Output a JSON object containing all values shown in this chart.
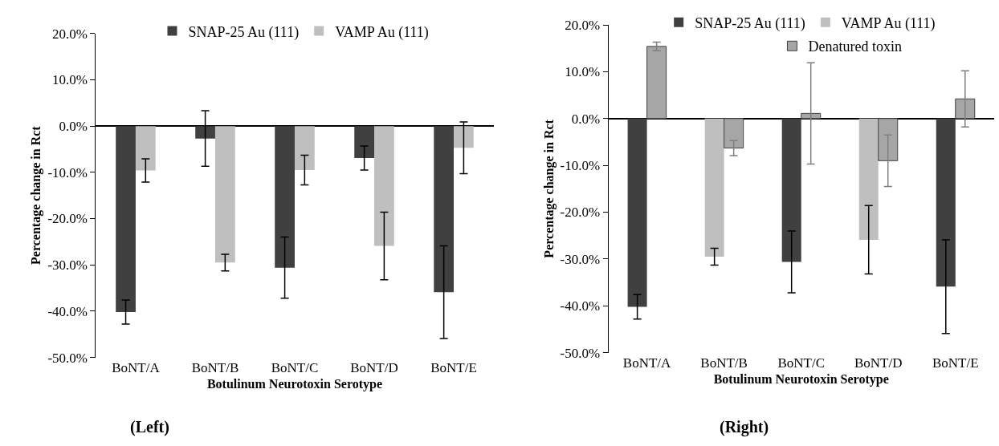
{
  "chart_data": [
    {
      "type": "bar",
      "xlabel": "Botulinum Neurotoxin Serotype",
      "ylabel": "Percentage change in Rct",
      "categories": [
        "BoNT/A",
        "BoNT/B",
        "BoNT/C",
        "BoNT/D",
        "BoNT/E"
      ],
      "series": [
        {
          "name": "SNAP-25 Au (111)",
          "color": "#404040",
          "values": [
            -40.2,
            -2.7,
            -30.6,
            -6.9,
            -35.9
          ],
          "errors": [
            2.6,
            6.0,
            6.6,
            2.6,
            10.0
          ]
        },
        {
          "name": "VAMP Au (111)",
          "color": "#bfbfbf",
          "values": [
            -9.6,
            -29.5,
            -9.5,
            -25.9,
            -4.7
          ],
          "errors": [
            2.5,
            1.8,
            3.2,
            7.3,
            5.6
          ]
        }
      ],
      "ylim": [
        -50,
        20
      ],
      "yticks": [
        {
          "value": -50,
          "label": "-50.0%"
        },
        {
          "value": -40,
          "label": "-40.0%"
        },
        {
          "value": -30,
          "label": "-30.0%"
        },
        {
          "value": -20,
          "label": "-20.0%"
        },
        {
          "value": -10,
          "label": "-10.0%"
        },
        {
          "value": 0,
          "label": "0.0%"
        },
        {
          "value": 10,
          "label": "10.0%"
        },
        {
          "value": 20,
          "label": "20.0%"
        }
      ],
      "legend": "top",
      "annotations": [
        "(Left)"
      ]
    },
    {
      "type": "bar",
      "xlabel": "Botulinum Neurotoxin Serotype",
      "ylabel": "Percentage change in Rct",
      "categories": [
        "BoNT/A",
        "BoNT/B",
        "BoNT/C",
        "BoNT/D",
        "BoNT/E"
      ],
      "series": [
        {
          "name": "SNAP-25 Au (111)",
          "color": "#404040",
          "values": [
            -40.2,
            null,
            -30.6,
            null,
            -35.9
          ],
          "errors": [
            2.6,
            null,
            6.6,
            null,
            10.0
          ]
        },
        {
          "name": "VAMP Au (111)",
          "color": "#bfbfbf",
          "values": [
            null,
            -29.5,
            null,
            -25.9,
            null
          ],
          "errors": [
            null,
            1.8,
            null,
            7.3,
            null
          ]
        },
        {
          "name": "Denatured toxin",
          "color": "#a6a6a6",
          "values": [
            15.4,
            -6.3,
            1.1,
            -9.0,
            4.2
          ],
          "errors": [
            0.9,
            1.6,
            10.8,
            5.5,
            6.0
          ]
        }
      ],
      "ylim": [
        -50,
        20
      ],
      "yticks": [
        {
          "value": -50,
          "label": "-50.0%"
        },
        {
          "value": -40,
          "label": "-40.0%"
        },
        {
          "value": -30,
          "label": "-30.0%"
        },
        {
          "value": -20,
          "label": "-20.0%"
        },
        {
          "value": -10,
          "label": "-10.0%"
        },
        {
          "value": 0,
          "label": "0.0%"
        },
        {
          "value": 10,
          "label": "10.0%"
        },
        {
          "value": 20,
          "label": "20.0%"
        }
      ],
      "legend": "top",
      "annotations": [
        "(Right)"
      ]
    }
  ]
}
